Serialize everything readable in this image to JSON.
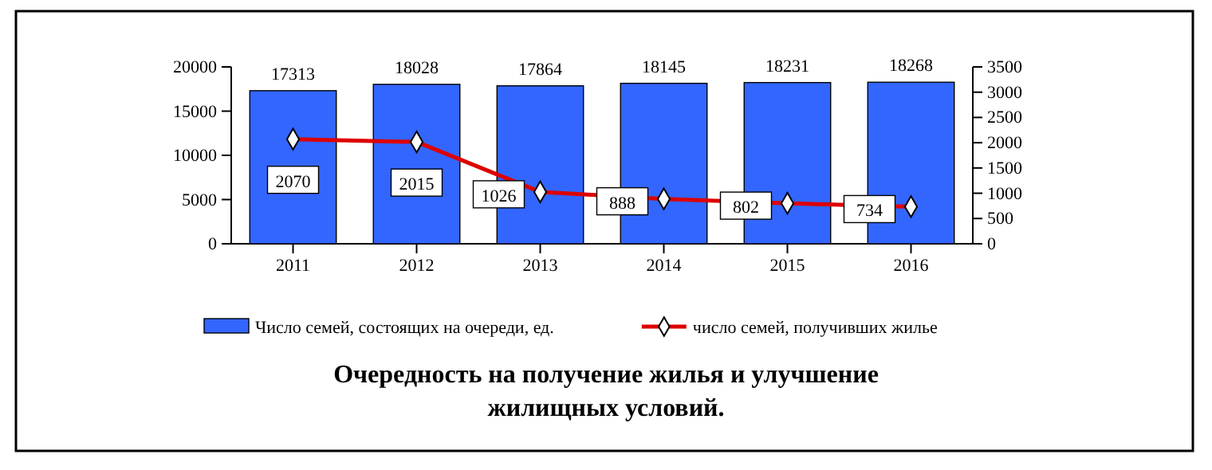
{
  "chart_data": {
    "type": "bar",
    "title": "Очередность на получение жилья и улучшение жилищных условий.",
    "categories": [
      "2011",
      "2012",
      "2013",
      "2014",
      "2015",
      "2016"
    ],
    "series": [
      {
        "name": "Число семей, состоящих на очереди, ед.",
        "color": "#3366ff",
        "values": [
          17313,
          18028,
          17864,
          18145,
          18231,
          18268
        ]
      },
      {
        "name": "число семей, получивших жилье",
        "type": "line",
        "axis": "y2",
        "color": "#dd0000",
        "marker": "diamond",
        "values": [
          2070,
          2015,
          1026,
          888,
          802,
          734
        ]
      }
    ],
    "ylim": [
      0,
      20000
    ],
    "yticks": [
      0,
      5000,
      10000,
      15000,
      20000
    ],
    "y2lim": [
      0,
      3500
    ],
    "y2ticks": [
      0,
      500,
      1000,
      1500,
      2000,
      2500,
      3000,
      3500
    ],
    "data_labels": true,
    "legend": "bottom",
    "grid": false
  }
}
